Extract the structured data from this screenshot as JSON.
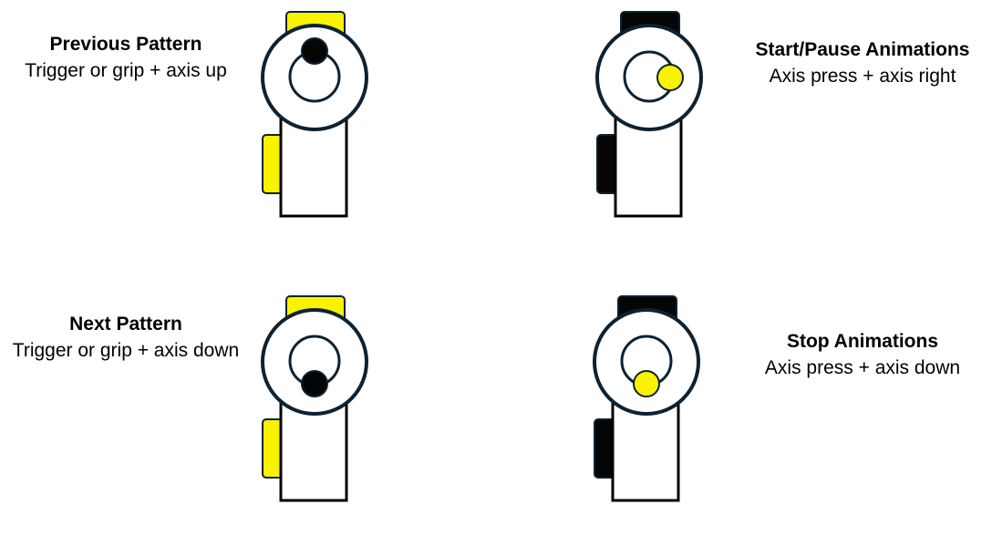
{
  "colors": {
    "highlight": "#f9f200",
    "dark": "#050505",
    "outline": "#0d2232",
    "body": "#ffffff"
  },
  "mappings": [
    {
      "title": "Previous Pattern",
      "description": "Trigger or grip + axis up",
      "trigger_state": "pressed",
      "grip_state": "pressed",
      "axis_direction": "up",
      "axis_pressed": false
    },
    {
      "title": "Start/Pause Animations",
      "description": "Axis press + axis right",
      "trigger_state": "released",
      "grip_state": "released",
      "axis_direction": "right",
      "axis_pressed": true
    },
    {
      "title": "Next Pattern",
      "description": "Trigger or grip + axis down",
      "trigger_state": "pressed",
      "grip_state": "pressed",
      "axis_direction": "down",
      "axis_pressed": false
    },
    {
      "title": "Stop Animations",
      "description": "Axis press + axis down",
      "trigger_state": "released",
      "grip_state": "released",
      "axis_direction": "down",
      "axis_pressed": true
    }
  ]
}
